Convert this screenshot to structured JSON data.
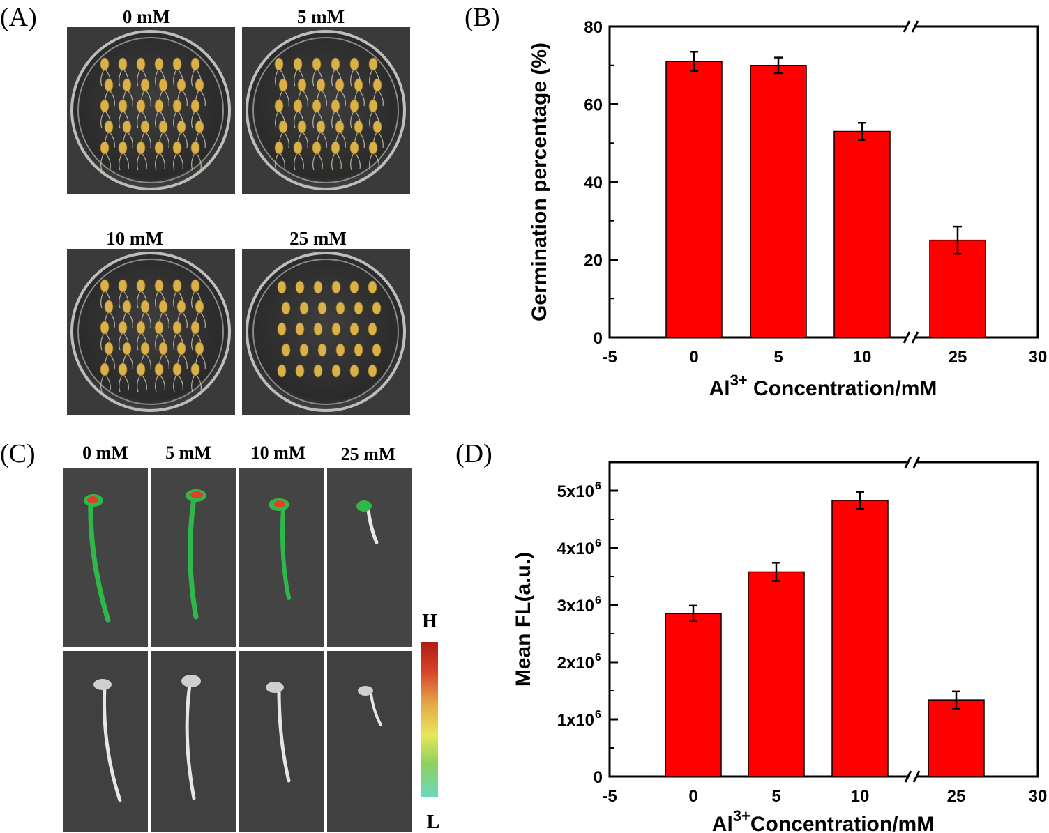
{
  "panel_labels": {
    "a": "(A)",
    "b": "(B)",
    "c": "(C)",
    "d": "(D)"
  },
  "panel_a": {
    "dish_labels": [
      "0 mM",
      "5 mM",
      "10 mM",
      "25 mM"
    ]
  },
  "panel_c": {
    "column_labels": [
      "0 mM",
      "5 mM",
      "10 mM",
      "25 mM"
    ],
    "scale_high": "H",
    "scale_low": "L"
  },
  "colors": {
    "bar": "#ff0000",
    "axis": "#000000"
  },
  "chart_data": [
    {
      "type": "bar",
      "id": "B",
      "categories": [
        "0",
        "5",
        "10",
        "25"
      ],
      "x": [
        0,
        5,
        10,
        25
      ],
      "values": [
        71,
        70,
        53,
        25
      ],
      "errors": [
        2.5,
        2.0,
        2.2,
        3.5
      ],
      "ylabel": "Germination percentage (%)",
      "xlabel_prefix": "Al",
      "xlabel_sup": "3+",
      "xlabel_suffix": " Concentration/mM",
      "ylim": [
        0,
        80
      ],
      "yticks": [
        "0",
        "20",
        "40",
        "60",
        "80"
      ],
      "xticks": [
        "-5",
        "0",
        "5",
        "10",
        "25",
        "30"
      ],
      "axis_break": "between 10 and 25"
    },
    {
      "type": "bar",
      "id": "D",
      "categories": [
        "0",
        "5",
        "10",
        "25"
      ],
      "x": [
        0,
        5,
        10,
        25
      ],
      "values": [
        2850000,
        3580000,
        4830000,
        1340000
      ],
      "errors": [
        140000,
        160000,
        150000,
        150000
      ],
      "ylabel": "Mean FL(a.u.)",
      "xlabel_prefix": "Al",
      "xlabel_sup": "3+",
      "xlabel_suffix": "Concentration/mM",
      "ylim": [
        0,
        5500000
      ],
      "yticks": [
        "0",
        "1x10",
        "2x10",
        "3x10",
        "4x10",
        "5x10"
      ],
      "ytick_exponent": "6",
      "xticks": [
        "-5",
        "0",
        "5",
        "10",
        "25",
        "30"
      ],
      "axis_break": "between 10 and 25"
    }
  ]
}
